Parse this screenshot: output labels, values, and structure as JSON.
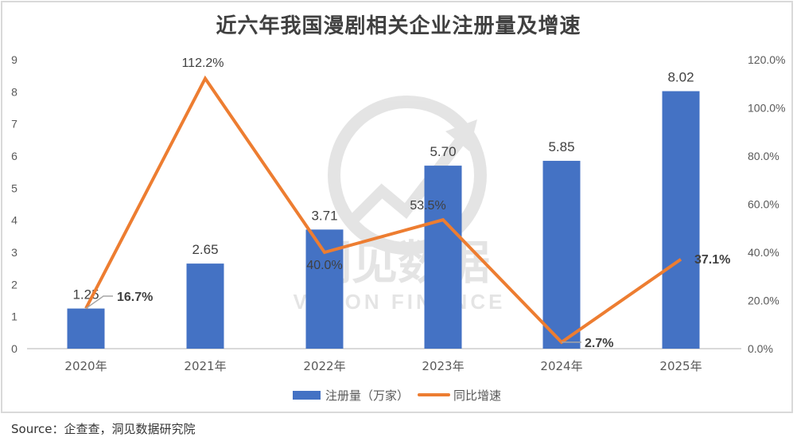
{
  "title": "近六年我国漫剧相关企业注册量及增速",
  "source": "Source：企查查，洞见数据研究院",
  "watermark": {
    "cn": "洞见数据",
    "en": "VISION FINANCE"
  },
  "colors": {
    "bar": "#4472c4",
    "line": "#ed7d31",
    "axis": "#d9d9d9",
    "text": "#595959",
    "label": "#404040"
  },
  "legend": [
    {
      "name": "注册量（万家）",
      "type": "bar",
      "color": "#4472c4"
    },
    {
      "name": "同比增速",
      "type": "line",
      "color": "#ed7d31"
    }
  ],
  "chart_data": {
    "type": "bar+line",
    "title": "近六年我国漫剧相关企业注册量及增速",
    "categories": [
      "2020年",
      "2021年",
      "2022年",
      "2023年",
      "2024年",
      "2025年"
    ],
    "series": [
      {
        "name": "注册量（万家）",
        "type": "bar",
        "axis": "left",
        "values": [
          1.25,
          2.65,
          3.71,
          5.7,
          5.85,
          8.02
        ],
        "labels": [
          "1.25",
          "2.65",
          "3.71",
          "5.70",
          "5.85",
          "8.02"
        ]
      },
      {
        "name": "同比增速",
        "type": "line",
        "axis": "right",
        "values": [
          16.7,
          112.2,
          40.0,
          53.5,
          2.7,
          37.1
        ],
        "labels": [
          "16.7%",
          "112.2%",
          "40.0%",
          "53.5%",
          "2.7%",
          "37.1%"
        ]
      }
    ],
    "left_axis": {
      "ylim": [
        0,
        9
      ],
      "ticks": [
        "0",
        "1",
        "2",
        "3",
        "4",
        "5",
        "6",
        "7",
        "8",
        "9"
      ]
    },
    "right_axis": {
      "ylim": [
        0,
        120
      ],
      "ticks": [
        "0.0%",
        "20.0%",
        "40.0%",
        "60.0%",
        "80.0%",
        "100.0%",
        "120.0%"
      ]
    },
    "grid": false,
    "legend_position": "bottom"
  }
}
